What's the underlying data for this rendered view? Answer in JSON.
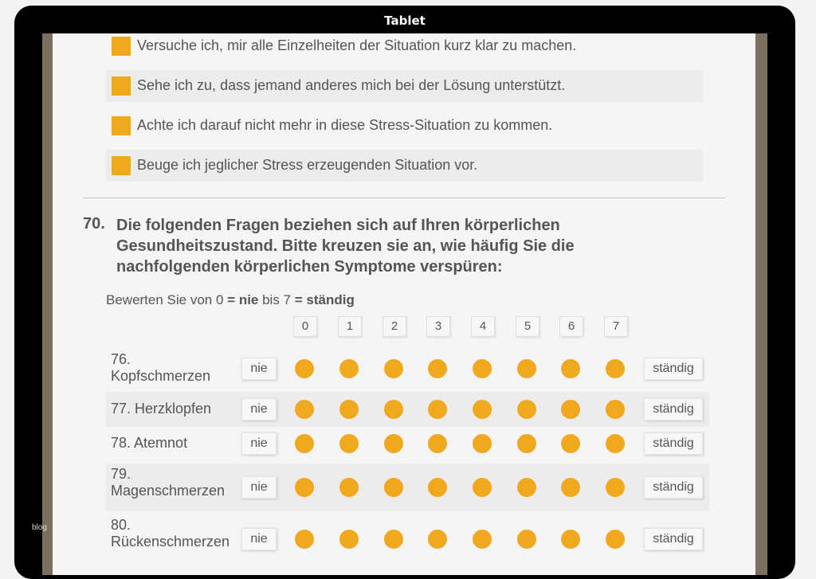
{
  "window": {
    "title": "Tablet",
    "watermark": "blog"
  },
  "colors": {
    "accent": "#f0a81e",
    "text": "#555555",
    "bezel": "#7b6f5e"
  },
  "options": [
    {
      "label": "Versuche ich, mir alle Einzelheiten der Situation kurz klar zu machen."
    },
    {
      "label": "Sehe ich zu, dass jemand anderes mich bei der Lösung unterstützt."
    },
    {
      "label": "Achte ich darauf nicht mehr in diese Stress-Situation zu kommen."
    },
    {
      "label": "Beuge ich jeglicher Stress erzeugenden Situation vor."
    }
  ],
  "question": {
    "number": "70.",
    "text": "Die folgenden Fragen beziehen sich auf Ihren körperlichen Gesundheitszustand. Bitte kreuzen sie an, wie häufig Sie die nachfolgenden körperlichen Symptome verspüren:"
  },
  "instruction": {
    "prefix": "Bewerten Sie von 0 ",
    "eq1": "= ",
    "low": "nie",
    "mid": " bis 7 ",
    "eq2": "= ",
    "high": "ständig"
  },
  "scale": [
    "0",
    "1",
    "2",
    "3",
    "4",
    "5",
    "6",
    "7"
  ],
  "min_label": "nie",
  "max_label": "ständig",
  "items": [
    {
      "label_line1": "76.",
      "label_line2": "Kopfschmerzen"
    },
    {
      "label_line1": "77. Herzklopfen",
      "label_line2": ""
    },
    {
      "label_line1": "78. Atemnot",
      "label_line2": ""
    },
    {
      "label_line1": "79.",
      "label_line2": "Magenschmerzen"
    },
    {
      "label_line1": "80.",
      "label_line2": "Rückenschmerzen"
    }
  ]
}
